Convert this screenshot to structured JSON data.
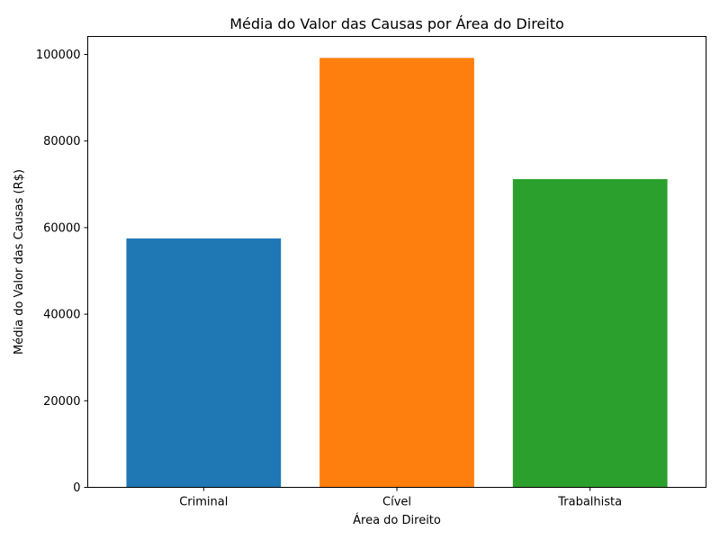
{
  "chart_data": {
    "type": "bar",
    "title": "Média do Valor das Causas por Área do Direito",
    "xlabel": "Área do Direito",
    "ylabel": "Média do Valor das Causas (R$)",
    "categories": [
      "Criminal",
      "Cível",
      "Trabalhista"
    ],
    "values": [
      57500,
      99200,
      71200
    ],
    "colors": [
      "#1f77b4",
      "#ff7f0e",
      "#2ca02c"
    ],
    "ylim": [
      0,
      104160
    ],
    "yticks": [
      0,
      20000,
      40000,
      60000,
      80000,
      100000
    ],
    "grid": false
  }
}
